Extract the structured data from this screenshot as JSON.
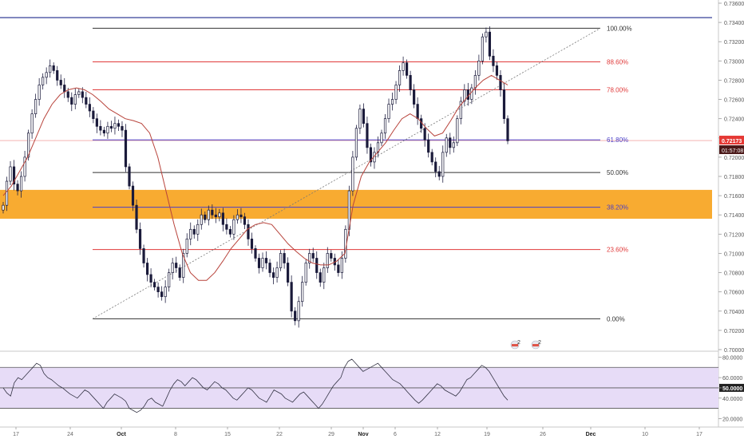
{
  "chart_data": {
    "type": "candlestick",
    "instrument": "",
    "price_axis": {
      "range": [
        0.7,
        0.736
      ],
      "ticks": [
        "0.73600",
        "0.73400",
        "0.73200",
        "0.73000",
        "0.72800",
        "0.72600",
        "0.72400",
        "0.72200",
        "0.72000",
        "0.71800",
        "0.71600",
        "0.71400",
        "0.71200",
        "0.71000",
        "0.70800",
        "0.70600",
        "0.70400",
        "0.70200",
        "0.70000"
      ]
    },
    "time_axis": {
      "ticks": [
        "17",
        "24",
        "Oct",
        "8",
        "15",
        "22",
        "29",
        "Nov",
        "6",
        "12",
        "19",
        "26",
        "Dec",
        "10",
        "17"
      ],
      "bold_ticks": [
        "Oct",
        "Nov",
        "Dec"
      ]
    },
    "fib_levels": [
      {
        "label": "100.00%",
        "price": 0.7334,
        "color": "#333333"
      },
      {
        "label": "88.60%",
        "price": 0.7299,
        "color": "#e03a3a"
      },
      {
        "label": "78.00%",
        "price": 0.727,
        "color": "#e03a3a"
      },
      {
        "label": "61.80%",
        "price": 0.7218,
        "color": "#4a3fc8"
      },
      {
        "label": "50.00%",
        "price": 0.7184,
        "color": "#333333"
      },
      {
        "label": "38.20%",
        "price": 0.7148,
        "color": "#4a3fc8"
      },
      {
        "label": "23.60%",
        "price": 0.7104,
        "color": "#e03a3a"
      },
      {
        "label": "0.00%",
        "price": 0.7032,
        "color": "#333333"
      }
    ],
    "top_line_price": 0.7345,
    "zone": {
      "from": 0.7136,
      "to": 0.7166,
      "color": "#f7a21b"
    },
    "current_price": {
      "value": "0.72173",
      "timer": "01:57:08",
      "price": 0.72173,
      "color": "#e53935"
    },
    "close_series": [
      0.715,
      0.7175,
      0.719,
      0.7172,
      0.7165,
      0.718,
      0.72,
      0.7225,
      0.7245,
      0.726,
      0.7275,
      0.7283,
      0.7288,
      0.7295,
      0.729,
      0.728,
      0.7275,
      0.7268,
      0.7262,
      0.7255,
      0.7265,
      0.7268,
      0.7262,
      0.7255,
      0.7248,
      0.724,
      0.7232,
      0.7228,
      0.7225,
      0.7232,
      0.723,
      0.7235,
      0.7232,
      0.7228,
      0.719,
      0.717,
      0.715,
      0.7125,
      0.7105,
      0.709,
      0.7078,
      0.707,
      0.7065,
      0.706,
      0.7055,
      0.7065,
      0.708,
      0.709,
      0.7085,
      0.7075,
      0.71,
      0.7115,
      0.7125,
      0.712,
      0.713,
      0.714,
      0.7135,
      0.7145,
      0.714,
      0.7138,
      0.7142,
      0.713,
      0.7125,
      0.712,
      0.7135,
      0.714,
      0.7138,
      0.713,
      0.7115,
      0.7105,
      0.7095,
      0.7085,
      0.7095,
      0.709,
      0.708,
      0.7075,
      0.7085,
      0.71,
      0.709,
      0.707,
      0.704,
      0.703,
      0.705,
      0.707,
      0.709,
      0.71,
      0.7095,
      0.708,
      0.707,
      0.7085,
      0.71,
      0.7095,
      0.7088,
      0.708,
      0.7095,
      0.7125,
      0.7165,
      0.72,
      0.723,
      0.725,
      0.7235,
      0.721,
      0.7195,
      0.7205,
      0.7215,
      0.7225,
      0.724,
      0.7255,
      0.726,
      0.7275,
      0.729,
      0.7298,
      0.7285,
      0.727,
      0.7255,
      0.724,
      0.723,
      0.7218,
      0.7205,
      0.7195,
      0.7185,
      0.718,
      0.7205,
      0.722,
      0.721,
      0.7215,
      0.724,
      0.7258,
      0.727,
      0.726,
      0.7272,
      0.7285,
      0.73,
      0.7325,
      0.733,
      0.7305,
      0.7295,
      0.7285,
      0.727,
      0.724,
      0.7217
    ],
    "ma_series": [
      0.716,
      0.717,
      0.7185,
      0.72,
      0.722,
      0.724,
      0.7255,
      0.7265,
      0.727,
      0.7272,
      0.727,
      0.7265,
      0.7258,
      0.725,
      0.7245,
      0.724,
      0.7238,
      0.7235,
      0.7225,
      0.72,
      0.7165,
      0.713,
      0.71,
      0.708,
      0.7072,
      0.7072,
      0.708,
      0.7092,
      0.7105,
      0.7115,
      0.7125,
      0.713,
      0.7132,
      0.713,
      0.712,
      0.711,
      0.7102,
      0.7095,
      0.709,
      0.7088,
      0.7088,
      0.7092,
      0.71,
      0.715,
      0.718,
      0.7195,
      0.7205,
      0.7215,
      0.7228,
      0.724,
      0.7245,
      0.724,
      0.723,
      0.7222,
      0.7225,
      0.7238,
      0.7252,
      0.7262,
      0.7272,
      0.728,
      0.7285,
      0.728,
      0.7275
    ],
    "rsi": {
      "range": [
        25,
        85
      ],
      "ticks": [
        "80.0000",
        "60.0000",
        "50.0000",
        "40.0000",
        "20.0000"
      ],
      "highlight_tick": "50.0000",
      "band": [
        30,
        70
      ],
      "values": [
        50,
        45,
        42,
        55,
        60,
        58,
        62,
        66,
        70,
        74,
        72,
        64,
        60,
        58,
        55,
        52,
        50,
        47,
        44,
        42,
        40,
        44,
        48,
        46,
        42,
        38,
        34,
        30,
        36,
        40,
        44,
        42,
        40,
        37,
        30,
        28,
        26,
        28,
        32,
        38,
        40,
        36,
        34,
        32,
        40,
        48,
        54,
        58,
        56,
        52,
        56,
        60,
        58,
        54,
        50,
        48,
        52,
        56,
        54,
        50,
        48,
        44,
        40,
        38,
        42,
        46,
        50,
        48,
        44,
        40,
        38,
        36,
        42,
        48,
        46,
        44,
        40,
        38,
        36,
        40,
        44,
        46,
        42,
        38,
        34,
        30,
        34,
        40,
        46,
        52,
        56,
        60,
        70,
        76,
        78,
        74,
        70,
        66,
        68,
        70,
        72,
        74,
        70,
        66,
        62,
        58,
        56,
        54,
        50,
        46,
        42,
        38,
        35,
        38,
        42,
        46,
        50,
        54,
        52,
        48,
        46,
        44,
        42,
        46,
        52,
        58,
        60,
        64,
        68,
        72,
        70,
        66,
        60,
        54,
        48,
        42,
        38
      ]
    },
    "event_badges": [
      "2",
      "2"
    ]
  }
}
